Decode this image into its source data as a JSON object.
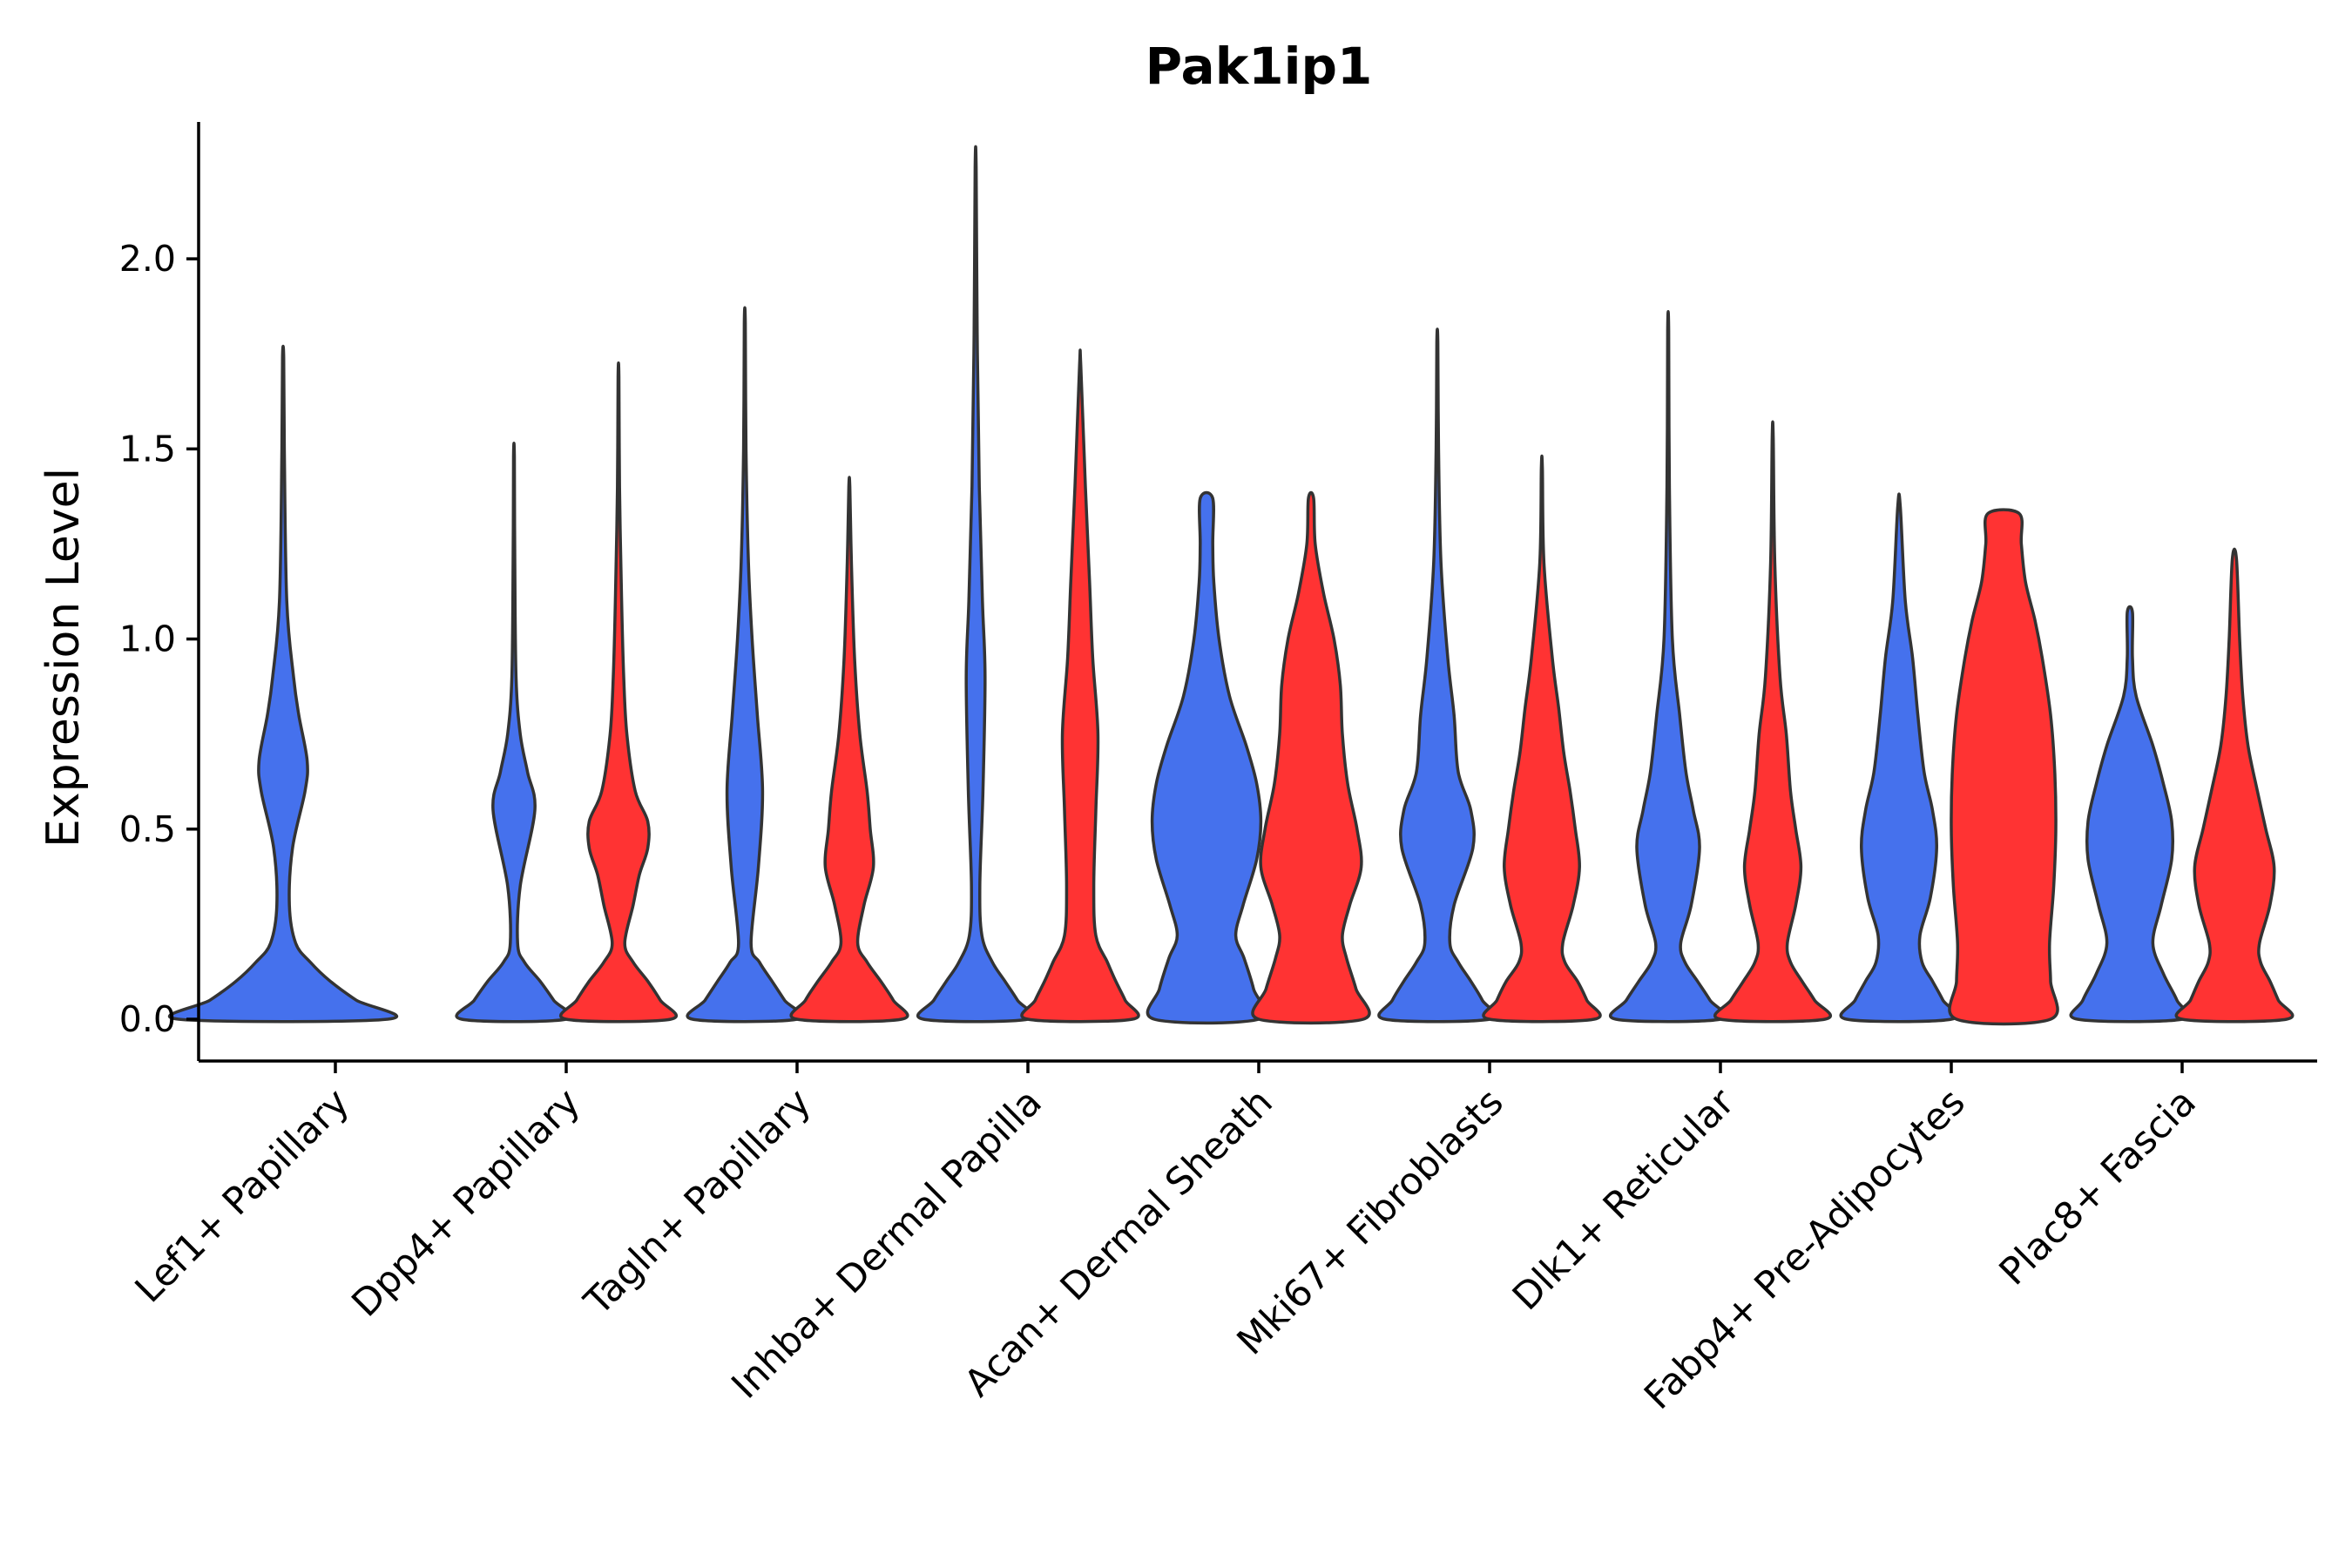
{
  "chart_data": {
    "type": "violin",
    "title": "Pak1ip1",
    "ylabel": "Expression Level",
    "xlabel": "",
    "ylim": [
      -0.11,
      2.36
    ],
    "yticks": [
      0.0,
      0.5,
      1.0,
      1.5,
      2.0
    ],
    "ytick_labels": [
      "0.0",
      "0.5",
      "1.0",
      "1.5",
      "2.0"
    ],
    "grid": false,
    "legend": "none",
    "colors": {
      "group1": "#4571ed",
      "group2": "#ff3333",
      "outline": "#333333"
    },
    "categories": [
      "Lef1+ Papillary",
      "Dpp4+ Papillary",
      "Tagln+ Papillary",
      "Inhba+ Dermal Papilla",
      "Acan+ Dermal Sheath",
      "Mki67+ Fibroblasts",
      "Dlk1+ Reticular",
      "Fabp4+ Pre-Adipocytes",
      "Plac8+ Fascia"
    ],
    "series": [
      {
        "color": "#4571ed",
        "violins": [
          {
            "max": 1.74,
            "profile": [
              [
                0.0,
                1.0
              ],
              [
                0.05,
                0.7
              ],
              [
                0.1,
                0.45
              ],
              [
                0.15,
                0.26
              ],
              [
                0.2,
                0.12
              ],
              [
                0.3,
                0.06
              ],
              [
                0.45,
                0.09
              ],
              [
                0.6,
                0.21
              ],
              [
                0.68,
                0.23
              ],
              [
                0.8,
                0.15
              ],
              [
                0.9,
                0.1
              ],
              [
                1.1,
                0.035
              ],
              [
                1.5,
                0.012
              ],
              [
                1.74,
                0.006
              ]
            ]
          },
          {
            "max": 1.48,
            "profile": [
              [
                0.0,
                0.5
              ],
              [
                0.05,
                0.38
              ],
              [
                0.1,
                0.25
              ],
              [
                0.15,
                0.1
              ],
              [
                0.2,
                0.035
              ],
              [
                0.35,
                0.06
              ],
              [
                0.55,
                0.2
              ],
              [
                0.65,
                0.13
              ],
              [
                0.75,
                0.06
              ],
              [
                0.9,
                0.02
              ],
              [
                1.2,
                0.008
              ],
              [
                1.48,
                0.004
              ]
            ]
          },
          {
            "max": 1.83,
            "profile": [
              [
                0.0,
                0.5
              ],
              [
                0.05,
                0.38
              ],
              [
                0.1,
                0.26
              ],
              [
                0.15,
                0.14
              ],
              [
                0.2,
                0.06
              ],
              [
                0.4,
                0.13
              ],
              [
                0.6,
                0.17
              ],
              [
                0.8,
                0.12
              ],
              [
                1.0,
                0.07
              ],
              [
                1.2,
                0.035
              ],
              [
                1.5,
                0.012
              ],
              [
                1.83,
                0.005
              ]
            ]
          },
          {
            "max": 2.24,
            "profile": [
              [
                0.0,
                0.5
              ],
              [
                0.05,
                0.4
              ],
              [
                0.1,
                0.28
              ],
              [
                0.15,
                0.16
              ],
              [
                0.22,
                0.06
              ],
              [
                0.35,
                0.04
              ],
              [
                0.6,
                0.07
              ],
              [
                0.9,
                0.09
              ],
              [
                1.1,
                0.065
              ],
              [
                1.4,
                0.035
              ],
              [
                1.8,
                0.015
              ],
              [
                2.24,
                0.005
              ]
            ]
          },
          {
            "max": 1.37,
            "profile": [
              [
                0.0,
                0.5
              ],
              [
                0.08,
                0.45
              ],
              [
                0.16,
                0.36
              ],
              [
                0.22,
                0.28
              ],
              [
                0.3,
                0.35
              ],
              [
                0.42,
                0.48
              ],
              [
                0.52,
                0.52
              ],
              [
                0.62,
                0.48
              ],
              [
                0.72,
                0.38
              ],
              [
                0.85,
                0.22
              ],
              [
                1.0,
                0.12
              ],
              [
                1.15,
                0.07
              ],
              [
                1.25,
                0.06
              ],
              [
                1.37,
                0.06
              ]
            ]
          },
          {
            "max": 1.78,
            "profile": [
              [
                0.0,
                0.5
              ],
              [
                0.05,
                0.43
              ],
              [
                0.1,
                0.32
              ],
              [
                0.15,
                0.2
              ],
              [
                0.2,
                0.12
              ],
              [
                0.3,
                0.16
              ],
              [
                0.45,
                0.34
              ],
              [
                0.55,
                0.32
              ],
              [
                0.65,
                0.2
              ],
              [
                0.8,
                0.16
              ],
              [
                0.95,
                0.1
              ],
              [
                1.2,
                0.035
              ],
              [
                1.5,
                0.012
              ],
              [
                1.78,
                0.005
              ]
            ]
          },
          {
            "max": 1.81,
            "profile": [
              [
                0.0,
                0.5
              ],
              [
                0.05,
                0.4
              ],
              [
                0.1,
                0.28
              ],
              [
                0.15,
                0.16
              ],
              [
                0.2,
                0.12
              ],
              [
                0.3,
                0.22
              ],
              [
                0.45,
                0.3
              ],
              [
                0.55,
                0.24
              ],
              [
                0.65,
                0.17
              ],
              [
                0.8,
                0.11
              ],
              [
                1.0,
                0.04
              ],
              [
                1.4,
                0.012
              ],
              [
                1.81,
                0.005
              ]
            ]
          },
          {
            "max": 1.35,
            "profile": [
              [
                0.0,
                0.5
              ],
              [
                0.05,
                0.42
              ],
              [
                0.1,
                0.32
              ],
              [
                0.15,
                0.22
              ],
              [
                0.22,
                0.2
              ],
              [
                0.32,
                0.3
              ],
              [
                0.45,
                0.36
              ],
              [
                0.55,
                0.32
              ],
              [
                0.65,
                0.24
              ],
              [
                0.8,
                0.18
              ],
              [
                0.95,
                0.13
              ],
              [
                1.1,
                0.06
              ],
              [
                1.35,
                0.012
              ]
            ]
          },
          {
            "max": 1.07,
            "profile": [
              [
                0.0,
                0.5
              ],
              [
                0.05,
                0.45
              ],
              [
                0.12,
                0.32
              ],
              [
                0.2,
                0.22
              ],
              [
                0.3,
                0.3
              ],
              [
                0.42,
                0.4
              ],
              [
                0.52,
                0.4
              ],
              [
                0.62,
                0.32
              ],
              [
                0.72,
                0.22
              ],
              [
                0.85,
                0.06
              ],
              [
                0.95,
                0.025
              ],
              [
                1.07,
                0.025
              ]
            ]
          }
        ]
      },
      {
        "color": "#ff3333",
        "violins": [
          null,
          {
            "max": 1.69,
            "profile": [
              [
                0.0,
                0.5
              ],
              [
                0.05,
                0.4
              ],
              [
                0.1,
                0.28
              ],
              [
                0.15,
                0.14
              ],
              [
                0.2,
                0.06
              ],
              [
                0.3,
                0.14
              ],
              [
                0.38,
                0.2
              ],
              [
                0.45,
                0.28
              ],
              [
                0.52,
                0.28
              ],
              [
                0.6,
                0.16
              ],
              [
                0.75,
                0.08
              ],
              [
                0.9,
                0.05
              ],
              [
                1.1,
                0.03
              ],
              [
                1.4,
                0.01
              ],
              [
                1.69,
                0.004
              ]
            ]
          },
          {
            "max": 1.4,
            "profile": [
              [
                0.0,
                0.5
              ],
              [
                0.05,
                0.42
              ],
              [
                0.1,
                0.3
              ],
              [
                0.15,
                0.17
              ],
              [
                0.2,
                0.08
              ],
              [
                0.3,
                0.14
              ],
              [
                0.4,
                0.23
              ],
              [
                0.5,
                0.2
              ],
              [
                0.6,
                0.17
              ],
              [
                0.75,
                0.1
              ],
              [
                0.95,
                0.05
              ],
              [
                1.2,
                0.02
              ],
              [
                1.4,
                0.005
              ]
            ]
          },
          {
            "max": 1.72,
            "profile": [
              [
                0.0,
                0.5
              ],
              [
                0.05,
                0.43
              ],
              [
                0.1,
                0.34
              ],
              [
                0.15,
                0.26
              ],
              [
                0.22,
                0.15
              ],
              [
                0.35,
                0.13
              ],
              [
                0.55,
                0.15
              ],
              [
                0.75,
                0.17
              ],
              [
                0.95,
                0.12
              ],
              [
                1.15,
                0.09
              ],
              [
                1.4,
                0.05
              ],
              [
                1.72,
                0.006
              ]
            ]
          },
          {
            "max": 1.37,
            "profile": [
              [
                0.0,
                0.5
              ],
              [
                0.08,
                0.43
              ],
              [
                0.16,
                0.34
              ],
              [
                0.22,
                0.3
              ],
              [
                0.3,
                0.37
              ],
              [
                0.4,
                0.48
              ],
              [
                0.5,
                0.44
              ],
              [
                0.62,
                0.35
              ],
              [
                0.75,
                0.3
              ],
              [
                0.88,
                0.28
              ],
              [
                1.0,
                0.22
              ],
              [
                1.12,
                0.12
              ],
              [
                1.25,
                0.04
              ],
              [
                1.37,
                0.025
              ]
            ]
          },
          {
            "max": 1.45,
            "profile": [
              [
                0.0,
                0.5
              ],
              [
                0.05,
                0.43
              ],
              [
                0.1,
                0.34
              ],
              [
                0.15,
                0.22
              ],
              [
                0.2,
                0.2
              ],
              [
                0.3,
                0.3
              ],
              [
                0.4,
                0.36
              ],
              [
                0.5,
                0.32
              ],
              [
                0.6,
                0.27
              ],
              [
                0.7,
                0.21
              ],
              [
                0.82,
                0.16
              ],
              [
                0.95,
                0.1
              ],
              [
                1.2,
                0.02
              ],
              [
                1.45,
                0.005
              ]
            ]
          },
          {
            "max": 1.53,
            "profile": [
              [
                0.0,
                0.5
              ],
              [
                0.05,
                0.4
              ],
              [
                0.1,
                0.28
              ],
              [
                0.15,
                0.17
              ],
              [
                0.2,
                0.14
              ],
              [
                0.3,
                0.22
              ],
              [
                0.4,
                0.27
              ],
              [
                0.5,
                0.22
              ],
              [
                0.6,
                0.17
              ],
              [
                0.75,
                0.13
              ],
              [
                0.9,
                0.07
              ],
              [
                1.2,
                0.02
              ],
              [
                1.53,
                0.005
              ]
            ]
          },
          {
            "max": 1.33,
            "profile": [
              [
                0.0,
                0.45
              ],
              [
                0.1,
                0.45
              ],
              [
                0.2,
                0.44
              ],
              [
                0.35,
                0.48
              ],
              [
                0.5,
                0.5
              ],
              [
                0.65,
                0.49
              ],
              [
                0.8,
                0.45
              ],
              [
                0.95,
                0.37
              ],
              [
                1.05,
                0.3
              ],
              [
                1.15,
                0.21
              ],
              [
                1.25,
                0.17
              ],
              [
                1.33,
                0.15
              ]
            ]
          },
          {
            "max": 1.21,
            "profile": [
              [
                0.0,
                0.5
              ],
              [
                0.05,
                0.42
              ],
              [
                0.1,
                0.34
              ],
              [
                0.15,
                0.25
              ],
              [
                0.2,
                0.24
              ],
              [
                0.3,
                0.34
              ],
              [
                0.4,
                0.38
              ],
              [
                0.5,
                0.3
              ],
              [
                0.6,
                0.22
              ],
              [
                0.72,
                0.13
              ],
              [
                0.85,
                0.08
              ],
              [
                1.0,
                0.05
              ],
              [
                1.21,
                0.02
              ]
            ]
          }
        ]
      }
    ]
  }
}
